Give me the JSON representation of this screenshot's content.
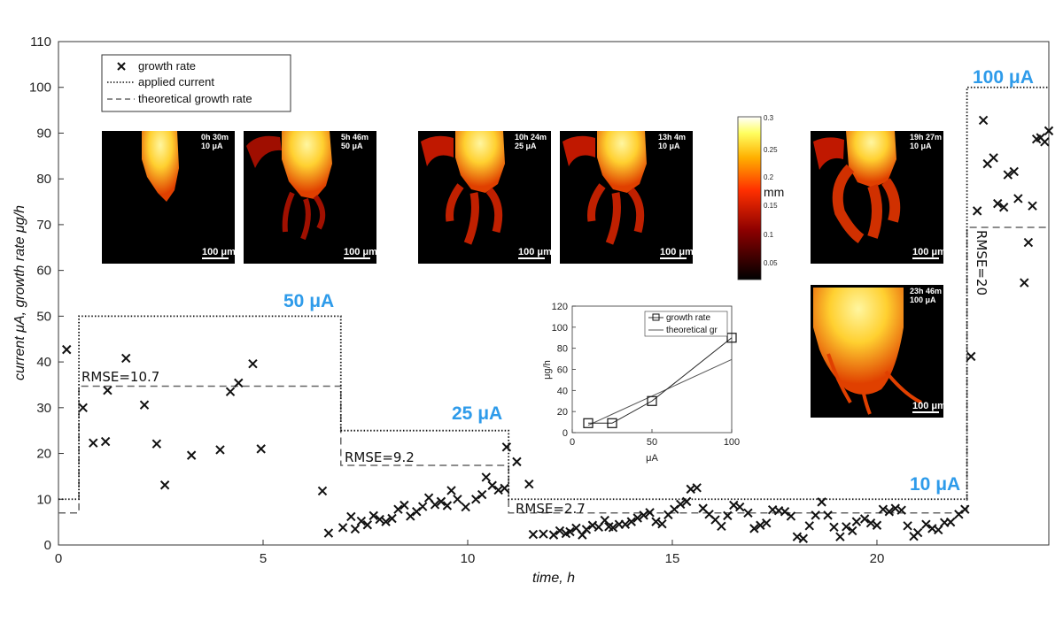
{
  "chart_data": [
    {
      "type": "scatter",
      "title": "",
      "xlabel": "time, h",
      "ylabel": "current μA, growth rate μg/h",
      "xlim": [
        0,
        24.2
      ],
      "ylim": [
        0,
        110
      ],
      "xticks": [
        0,
        5,
        10,
        15,
        20
      ],
      "yticks": [
        0,
        10,
        20,
        30,
        40,
        50,
        60,
        70,
        80,
        90,
        100,
        110
      ],
      "grid": false,
      "legend_position": "top-left",
      "legend": [
        "growth rate",
        "applied current",
        "theoretical growth rate"
      ],
      "series": [
        {
          "name": "growth rate",
          "marker": "x",
          "points": [
            [
              0.2,
              42.7
            ],
            [
              0.6,
              30.0
            ],
            [
              0.85,
              22.3
            ],
            [
              1.15,
              22.6
            ],
            [
              1.2,
              33.8
            ],
            [
              1.65,
              40.8
            ],
            [
              2.1,
              30.6
            ],
            [
              2.4,
              22.1
            ],
            [
              2.6,
              13.1
            ],
            [
              3.25,
              19.6
            ],
            [
              3.95,
              20.8
            ],
            [
              4.2,
              33.5
            ],
            [
              4.4,
              35.4
            ],
            [
              4.75,
              39.6
            ],
            [
              4.95,
              21.0
            ],
            [
              6.45,
              11.8
            ],
            [
              6.6,
              2.6
            ],
            [
              6.95,
              3.8
            ],
            [
              7.15,
              6.2
            ],
            [
              7.25,
              3.5
            ],
            [
              7.4,
              5.2
            ],
            [
              7.55,
              4.4
            ],
            [
              7.7,
              6.4
            ],
            [
              7.85,
              5.6
            ],
            [
              8.0,
              5.1
            ],
            [
              8.15,
              5.8
            ],
            [
              8.3,
              7.8
            ],
            [
              8.45,
              8.7
            ],
            [
              8.6,
              6.3
            ],
            [
              8.75,
              7.3
            ],
            [
              8.9,
              8.4
            ],
            [
              9.05,
              10.3
            ],
            [
              9.2,
              8.8
            ],
            [
              9.35,
              9.5
            ],
            [
              9.5,
              8.6
            ],
            [
              9.6,
              11.9
            ],
            [
              9.75,
              10.0
            ],
            [
              9.95,
              8.3
            ],
            [
              10.2,
              10.0
            ],
            [
              10.35,
              11.0
            ],
            [
              10.45,
              14.8
            ],
            [
              10.6,
              13.0
            ],
            [
              10.75,
              12.0
            ],
            [
              10.9,
              12.4
            ],
            [
              10.95,
              21.4
            ],
            [
              11.2,
              18.2
            ],
            [
              11.5,
              13.3
            ],
            [
              11.6,
              2.3
            ],
            [
              11.85,
              2.4
            ],
            [
              12.1,
              2.2
            ],
            [
              12.25,
              3.1
            ],
            [
              12.4,
              2.5
            ],
            [
              12.5,
              2.9
            ],
            [
              12.65,
              3.7
            ],
            [
              12.8,
              2.2
            ],
            [
              12.9,
              3.4
            ],
            [
              13.05,
              4.3
            ],
            [
              13.2,
              3.9
            ],
            [
              13.35,
              5.4
            ],
            [
              13.45,
              4.0
            ],
            [
              13.55,
              3.8
            ],
            [
              13.7,
              4.5
            ],
            [
              13.85,
              4.5
            ],
            [
              14.0,
              5.1
            ],
            [
              14.15,
              5.9
            ],
            [
              14.3,
              6.5
            ],
            [
              14.45,
              7.1
            ],
            [
              14.6,
              5.1
            ],
            [
              14.75,
              4.6
            ],
            [
              14.9,
              6.6
            ],
            [
              15.05,
              7.8
            ],
            [
              15.2,
              8.9
            ],
            [
              15.35,
              9.5
            ],
            [
              15.45,
              12.2
            ],
            [
              15.6,
              12.5
            ],
            [
              15.75,
              8.0
            ],
            [
              15.9,
              6.7
            ],
            [
              16.05,
              5.5
            ],
            [
              16.2,
              4.1
            ],
            [
              16.35,
              6.4
            ],
            [
              16.5,
              8.7
            ],
            [
              16.65,
              8.3
            ],
            [
              16.85,
              7.0
            ],
            [
              17.0,
              3.6
            ],
            [
              17.15,
              4.3
            ],
            [
              17.3,
              4.8
            ],
            [
              17.45,
              7.7
            ],
            [
              17.6,
              7.5
            ],
            [
              17.75,
              7.3
            ],
            [
              17.9,
              6.3
            ],
            [
              18.05,
              1.8
            ],
            [
              18.2,
              1.4
            ],
            [
              18.35,
              4.2
            ],
            [
              18.5,
              6.5
            ],
            [
              18.65,
              9.4
            ],
            [
              18.8,
              6.5
            ],
            [
              18.95,
              3.9
            ],
            [
              19.1,
              1.8
            ],
            [
              19.25,
              4.0
            ],
            [
              19.4,
              3.1
            ],
            [
              19.5,
              5.1
            ],
            [
              19.7,
              5.7
            ],
            [
              19.85,
              4.8
            ],
            [
              20.0,
              4.3
            ],
            [
              20.15,
              7.8
            ],
            [
              20.3,
              7.3
            ],
            [
              20.45,
              8.0
            ],
            [
              20.6,
              7.6
            ],
            [
              20.75,
              4.2
            ],
            [
              20.9,
              1.9
            ],
            [
              21.0,
              2.7
            ],
            [
              21.2,
              4.5
            ],
            [
              21.35,
              3.6
            ],
            [
              21.5,
              3.3
            ],
            [
              21.65,
              4.9
            ],
            [
              21.8,
              5.0
            ],
            [
              22.0,
              6.7
            ],
            [
              22.15,
              7.8
            ],
            [
              22.3,
              41.2
            ],
            [
              22.45,
              73.0
            ],
            [
              22.6,
              92.8
            ],
            [
              22.7,
              83.3
            ],
            [
              22.85,
              84.6
            ],
            [
              22.95,
              74.6
            ],
            [
              23.1,
              73.8
            ],
            [
              23.2,
              80.9
            ],
            [
              23.35,
              81.6
            ],
            [
              23.45,
              75.7
            ],
            [
              23.6,
              57.3
            ],
            [
              23.7,
              66.1
            ],
            [
              23.8,
              74.1
            ],
            [
              23.9,
              88.7
            ],
            [
              24.0,
              89.0
            ],
            [
              24.1,
              88.1
            ],
            [
              24.2,
              90.5
            ],
            [
              24.3,
              93.1
            ]
          ]
        },
        {
          "name": "applied current",
          "style": "dotted",
          "points": [
            [
              0,
              10
            ],
            [
              0.5,
              10
            ],
            [
              0.5,
              50
            ],
            [
              6.9,
              50
            ],
            [
              6.9,
              25
            ],
            [
              11.0,
              25
            ],
            [
              11.0,
              10
            ],
            [
              22.2,
              10
            ],
            [
              22.2,
              100
            ],
            [
              24.2,
              100
            ]
          ]
        },
        {
          "name": "theoretical growth rate",
          "style": "dashed",
          "points": [
            [
              0,
              7
            ],
            [
              0.5,
              7
            ],
            [
              0.5,
              34.7
            ],
            [
              6.9,
              34.7
            ],
            [
              6.9,
              17.4
            ],
            [
              11.0,
              17.4
            ],
            [
              11.0,
              7
            ],
            [
              22.2,
              7
            ],
            [
              22.2,
              69.4
            ],
            [
              24.2,
              69.4
            ]
          ]
        }
      ],
      "current_labels": [
        {
          "text": "50 μA"
        },
        {
          "text": "25 μA"
        },
        {
          "text": "10 μA"
        },
        {
          "text": "100 μA"
        }
      ],
      "rmse_labels": [
        {
          "text": "RMSE=10.7"
        },
        {
          "text": "RMSE=9.2"
        },
        {
          "text": "RMSE=2.7"
        },
        {
          "text": "RMSE=20"
        }
      ]
    },
    {
      "type": "line",
      "title": "",
      "xlabel": "μA",
      "ylabel": "μg/h",
      "xlim": [
        0,
        100
      ],
      "ylim": [
        0,
        120
      ],
      "xticks": [
        0,
        50,
        100
      ],
      "yticks": [
        0,
        20,
        40,
        60,
        80,
        100,
        120
      ],
      "grid": false,
      "legend_position": "top-right",
      "series": [
        {
          "name": "growth rate",
          "marker": "square",
          "x": [
            10,
            25,
            50,
            100
          ],
          "y": [
            9,
            9,
            30,
            90
          ]
        },
        {
          "name": "theoretical gr",
          "x": [
            10,
            25,
            50,
            100
          ],
          "y": [
            7,
            17.4,
            34.7,
            69.4
          ]
        }
      ]
    }
  ],
  "micrographs": [
    {
      "time": "0h 30m",
      "current": "10 μA",
      "scale": "100 μm"
    },
    {
      "time": "5h 46m",
      "current": "50 μA",
      "scale": "100 μm"
    },
    {
      "time": "10h 24m",
      "current": "25 μA",
      "scale": "100 μm"
    },
    {
      "time": "13h 4m",
      "current": "10 μA",
      "scale": "100 μm"
    },
    {
      "time": "19h 27m",
      "current": "10 μA",
      "scale": "100 μm"
    },
    {
      "time": "23h 46m",
      "current": "100 μA",
      "scale": "100 μm"
    }
  ],
  "colorbar": {
    "unit": "mm",
    "ticks": [
      "0.3",
      "0.25",
      "0.2",
      "0.15",
      "0.1",
      "0.05"
    ]
  }
}
